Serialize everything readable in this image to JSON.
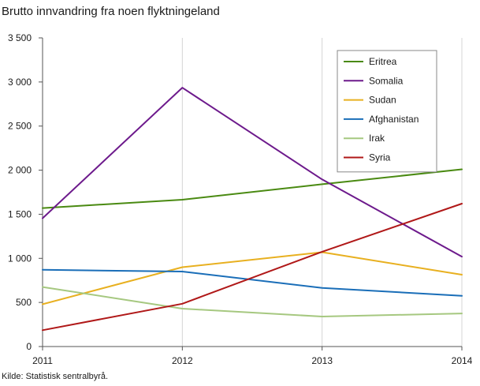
{
  "title": "Brutto innvandring fra noen flyktningeland",
  "source": "Kilde: Statistisk sentralbyrå.",
  "chart_data": {
    "type": "line",
    "title": "Brutto innvandring fra noen flyktningeland",
    "xlabel": "",
    "ylabel": "",
    "x": [
      "2011",
      "2012",
      "2013",
      "2014"
    ],
    "ylim": [
      0,
      3500
    ],
    "yticks": [
      0,
      500,
      1000,
      1500,
      2000,
      2500,
      3000,
      3500
    ],
    "ytick_labels": [
      "0",
      "500",
      "1 000",
      "1 500",
      "2 000",
      "2 500",
      "3 000",
      "3 500"
    ],
    "grid": "vertical",
    "legend_position": "top-right",
    "series": [
      {
        "name": "Eritrea",
        "color": "#4a8a12",
        "values": [
          1570,
          1665,
          1840,
          2010
        ]
      },
      {
        "name": "Somalia",
        "color": "#6d1a8c",
        "values": [
          1455,
          2935,
          1895,
          1020
        ]
      },
      {
        "name": "Sudan",
        "color": "#e8b020",
        "values": [
          480,
          900,
          1070,
          815
        ]
      },
      {
        "name": "Afghanistan",
        "color": "#1a6eb8",
        "values": [
          870,
          850,
          665,
          575
        ]
      },
      {
        "name": "Irak",
        "color": "#a6c880",
        "values": [
          675,
          430,
          340,
          375
        ]
      },
      {
        "name": "Syria",
        "color": "#b01818",
        "values": [
          185,
          485,
          1075,
          1620
        ]
      }
    ]
  }
}
